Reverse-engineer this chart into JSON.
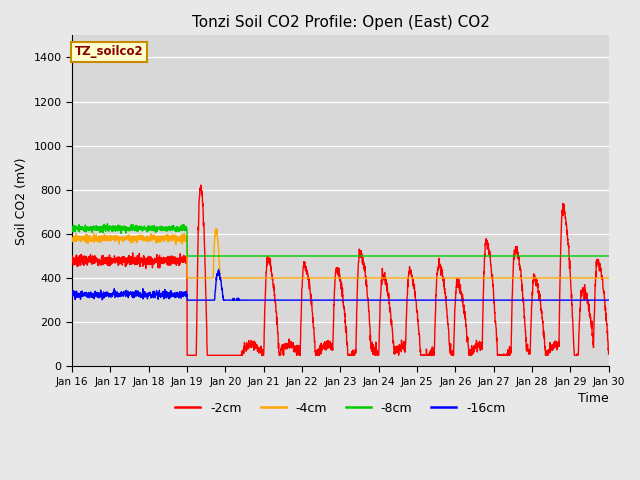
{
  "title": "Tonzi Soil CO2 Profile: Open (East) CO2",
  "xlabel": "Time",
  "ylabel": "Soil CO2 (mV)",
  "ylim": [
    0,
    1500
  ],
  "yticks": [
    0,
    200,
    400,
    600,
    800,
    1000,
    1200,
    1400
  ],
  "bg_color": "#e8e8e8",
  "plot_bg_color": "#d8d8d8",
  "grid_color": "#ffffff",
  "legend_label": "TZ_soilco2",
  "series_labels": [
    "-2cm",
    "-4cm",
    "-8cm",
    "-16cm"
  ],
  "series_colors": [
    "#ff0000",
    "#ffa500",
    "#00cc00",
    "#0000ff"
  ],
  "xtick_days": [
    16,
    17,
    18,
    19,
    20,
    21,
    22,
    23,
    24,
    25,
    26,
    27,
    28,
    29,
    30
  ],
  "flat_end_day": 19.0,
  "spike_day_red": 19.35,
  "spike_day_orange": 19.75,
  "osc_start_day": 20.5,
  "red_flat": 480,
  "orange_flat": 580,
  "green_flat": 625,
  "blue_flat": 325
}
